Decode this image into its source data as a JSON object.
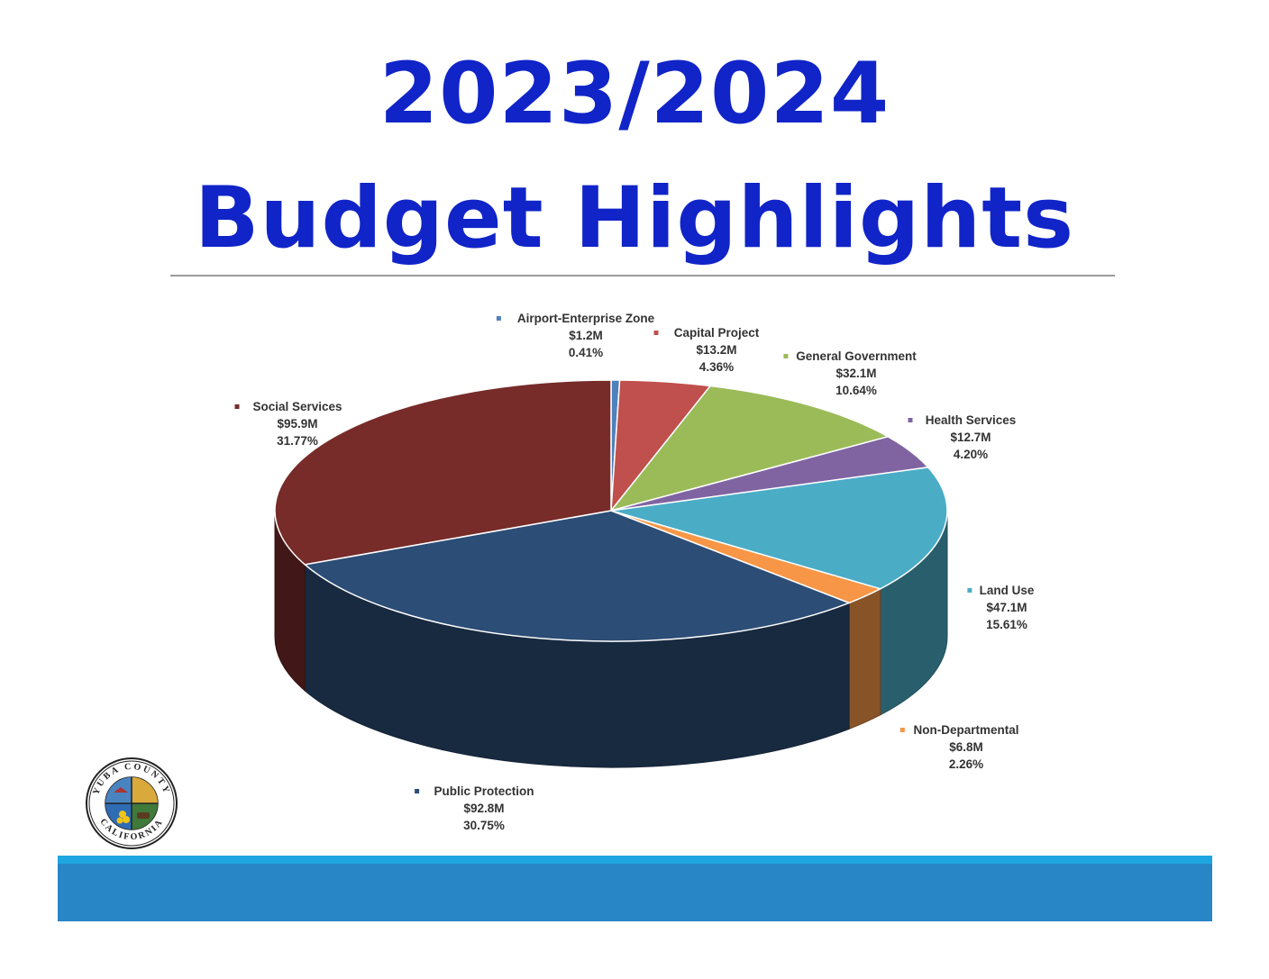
{
  "header": {
    "title_line1": "2023/2024",
    "title_line2": "Budget Highlights"
  },
  "chart_data": {
    "type": "pie",
    "style": "3d",
    "slices": [
      {
        "name": "Airport-Enterprise Zone",
        "amount": "$1.2M",
        "percent": "0.41%",
        "value": 0.41,
        "color": "#4f81bd"
      },
      {
        "name": "Capital Project",
        "amount": "$13.2M",
        "percent": "4.36%",
        "value": 4.36,
        "color": "#c0504d"
      },
      {
        "name": "General Government",
        "amount": "$32.1M",
        "percent": "10.64%",
        "value": 10.64,
        "color": "#9bbb59"
      },
      {
        "name": "Health Services",
        "amount": "$12.7M",
        "percent": "4.20%",
        "value": 4.2,
        "color": "#8064a2"
      },
      {
        "name": "Land Use",
        "amount": "$47.1M",
        "percent": "15.61%",
        "value": 15.61,
        "color": "#4bacc6"
      },
      {
        "name": "Non-Departmental",
        "amount": "$6.8M",
        "percent": "2.26%",
        "value": 2.26,
        "color": "#f79646"
      },
      {
        "name": "Public Protection",
        "amount": "$92.8M",
        "percent": "30.75%",
        "value": 30.75,
        "color": "#2c4d75"
      },
      {
        "name": "Social Services",
        "amount": "$95.9M",
        "percent": "31.77%",
        "value": 31.77,
        "color": "#772c2a"
      }
    ]
  },
  "seal": {
    "text_top": "YUBA COUNTY",
    "text_bottom": "CALIFORNIA"
  },
  "colors": {
    "title": "#1024c8",
    "band_top": "#1ea6e0",
    "band_main": "#2885c6"
  }
}
